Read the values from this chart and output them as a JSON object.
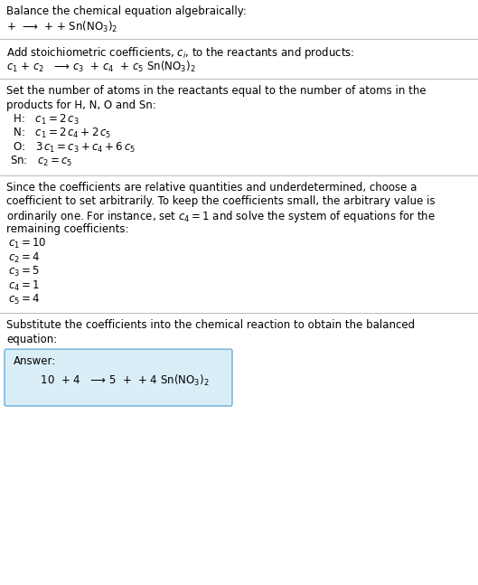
{
  "bg_color": "#ffffff",
  "text_color": "#000000",
  "section1_title": "Balance the chemical equation algebraically:",
  "section1_line1": "+  ⟶  + + Sn(NO$_3$)$_2$",
  "section2_title": "Add stoichiometric coefficients, $c_i$, to the reactants and products:",
  "section2_line1": "$c_1$ + $c_2$   ⟶ $c_3$  + $c_4$  + $c_5$ Sn(NO$_3$)$_2$",
  "section3_title_lines": [
    "Set the number of atoms in the reactants equal to the number of atoms in the",
    "products for H, N, O and Sn:"
  ],
  "section3_equations": [
    " H:   $c_1 = 2\\,c_3$",
    " N:   $c_1 = 2\\,c_4 + 2\\,c_5$",
    " O:   $3\\,c_1 = c_3 + c_4 + 6\\,c_5$",
    "Sn:   $c_2 = c_5$"
  ],
  "section4_title_lines": [
    "Since the coefficients are relative quantities and underdetermined, choose a",
    "coefficient to set arbitrarily. To keep the coefficients small, the arbitrary value is",
    "ordinarily one. For instance, set $c_4 = 1$ and solve the system of equations for the",
    "remaining coefficients:"
  ],
  "section4_equations": [
    "$c_1 = 10$",
    "$c_2 = 4$",
    "$c_3 = 5$",
    "$c_4 = 1$",
    "$c_5 = 4$"
  ],
  "section5_title_lines": [
    "Substitute the coefficients into the chemical reaction to obtain the balanced",
    "equation:"
  ],
  "answer_label": "Answer:",
  "answer_equation": "        10  + 4   ⟶ 5  +  + 4 Sn(NO$_3$)$_2$",
  "answer_box_facecolor": "#daeef8",
  "answer_box_edgecolor": "#6baed6",
  "font_size": 8.5,
  "divider_color": "#bbbbbb"
}
